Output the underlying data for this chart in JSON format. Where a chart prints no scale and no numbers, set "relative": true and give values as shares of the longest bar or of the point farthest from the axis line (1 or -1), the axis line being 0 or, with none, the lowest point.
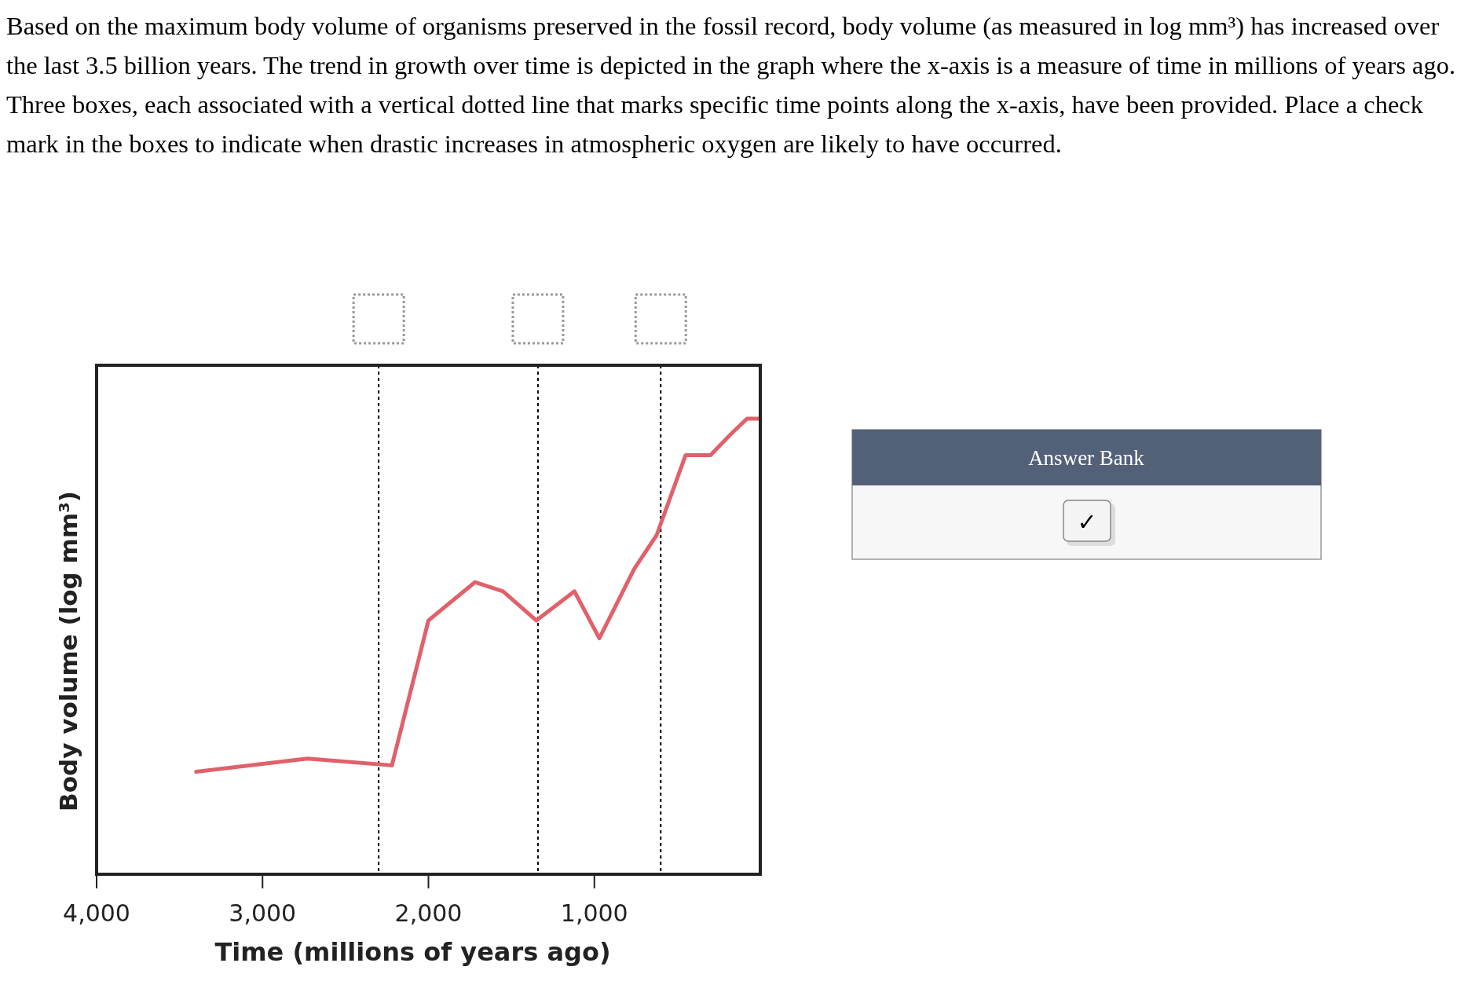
{
  "chart_data": {
    "type": "line",
    "title": "Based on the maximum body volume of organisms preserved in the fossil record, body volume (as measured in log mm³) has increased over the last 3.5 billion years. The trend in growth over time is depicted in the graph where the x-axis is a measure of time in millions of years ago. Three boxes, each associated with a vertical dotted line that marks specific time points along the x-axis, have been provided. Place a check mark in the boxes to indicate when drastic increases in atmospheric oxygen are likely to have occurred.",
    "xlabel": "Time (millions of years ago)",
    "ylabel": "Body volume (log mm³)",
    "relative": true,
    "xlim": [
      4000,
      0
    ],
    "xticks": [
      {
        "value": 4000,
        "label": "4,000"
      },
      {
        "value": 3000,
        "label": "3,000"
      },
      {
        "value": 2000,
        "label": "2,000"
      },
      {
        "value": 1000,
        "label": "1,000"
      }
    ],
    "tick_labels": "x",
    "grid": false,
    "line_style": "solid",
    "x": [
      3400,
      2730,
      2220,
      2000,
      1720,
      1550,
      1350,
      1120,
      970,
      760,
      625,
      450,
      300,
      180,
      80,
      0
    ],
    "series": [
      {
        "color": "#e0616a",
        "values": [
          0.225,
          0.254,
          0.239,
          0.557,
          0.641,
          0.621,
          0.557,
          0.621,
          0.518,
          0.67,
          0.744,
          0.92,
          0.92,
          0.965,
          1.0,
          1.0
        ]
      }
    ],
    "ref_lines": [
      {
        "axis": "x",
        "value": 2300,
        "color": "#000000",
        "line_style": "dotted"
      },
      {
        "axis": "x",
        "value": 1340,
        "color": "#000000",
        "line_style": "dotted"
      },
      {
        "axis": "x",
        "value": 600,
        "color": "#000000",
        "line_style": "dotted"
      }
    ],
    "annotations": [
      "Answer Bank",
      "✓"
    ]
  }
}
